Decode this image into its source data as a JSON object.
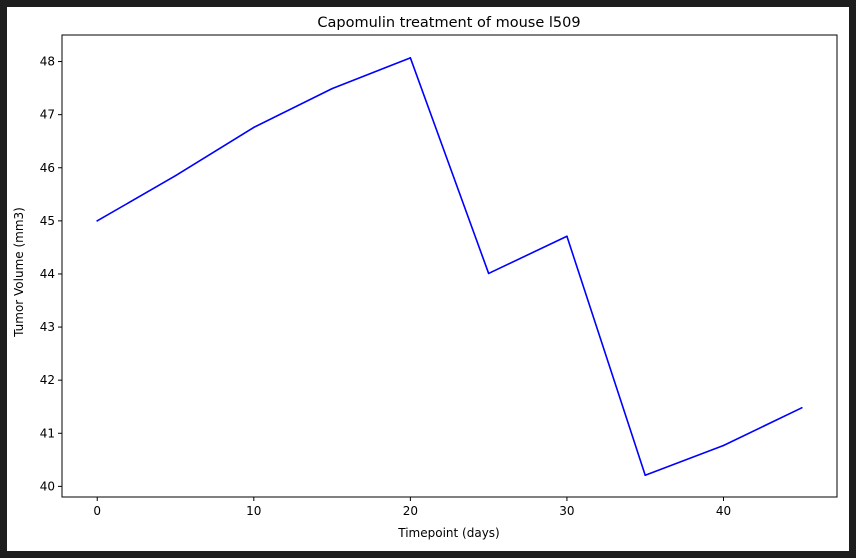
{
  "chart_data": {
    "type": "line",
    "title": "Capomulin treatment of mouse l509",
    "xlabel": "Timepoint (days)",
    "ylabel": "Tumor Volume (mm3)",
    "x": [
      0,
      5,
      10,
      15,
      20,
      25,
      30,
      35,
      40,
      45
    ],
    "series": [
      {
        "values": [
          45.0,
          45.85,
          46.76,
          47.49,
          48.07,
          44.01,
          44.71,
          40.21,
          40.77,
          41.48
        ],
        "color": "#0000ff"
      }
    ],
    "xlim": [
      -2.25,
      47.25
    ],
    "ylim": [
      39.8,
      48.5
    ],
    "xticks": [
      0,
      10,
      20,
      30,
      40
    ],
    "yticks": [
      40,
      41,
      42,
      43,
      44,
      45,
      46,
      47,
      48
    ],
    "grid": false,
    "legend": "none"
  },
  "colors": {
    "window_frame": "#1e1e1e",
    "figure_background": "#ffffff",
    "line": "#0000ff"
  }
}
